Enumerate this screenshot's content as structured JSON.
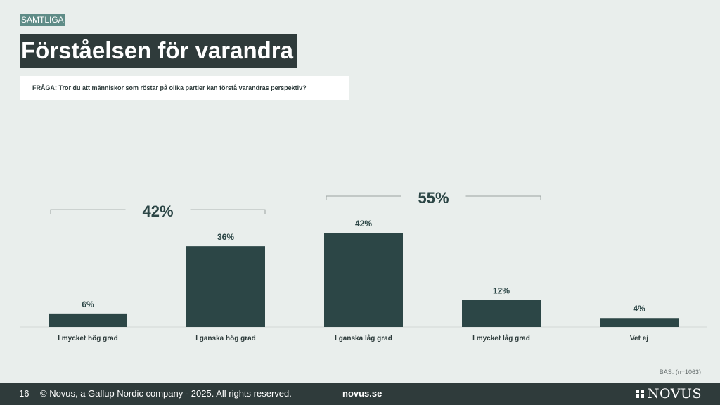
{
  "header": {
    "tag": "SAMTLIGA",
    "title": "Förståelsen för varandra",
    "question": "FRÅGA: Tror du att människor som röstar på olika partier kan förstå varandras perspektiv?"
  },
  "chart_data": {
    "type": "bar",
    "categories": [
      "I mycket hög grad",
      "I ganska hög grad",
      "I ganska låg grad",
      "I mycket låg grad",
      "Vet ej"
    ],
    "values": [
      6,
      36,
      42,
      12,
      4
    ],
    "value_labels": [
      "6%",
      "36%",
      "42%",
      "12%",
      "4%"
    ],
    "ylim": [
      0,
      42
    ],
    "grid": false,
    "bar_color": "#2c4646",
    "groups": [
      {
        "label": "42%",
        "from": 0,
        "to": 1
      },
      {
        "label": "55%",
        "from": 2,
        "to": 3
      }
    ]
  },
  "base_note": "BAS: (n=1063)",
  "footer": {
    "page": "16",
    "copyright": "© Novus, a Gallup Nordic company - 2025. All rights reserved.",
    "site": "novus.se",
    "logo": "NOVUS"
  }
}
